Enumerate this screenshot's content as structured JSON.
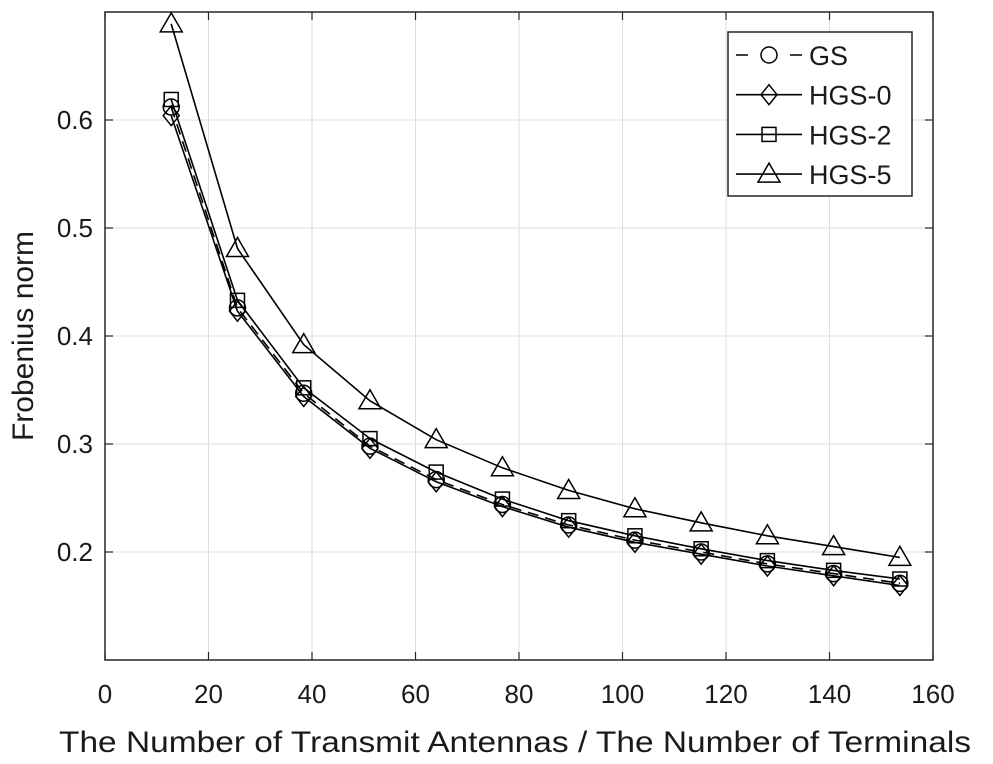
{
  "chart_data": {
    "type": "line",
    "xlabel": "The Number of Transmit Antennas / The Number of Terminals",
    "ylabel": "Frobenius norm",
    "xlim": [
      0,
      160
    ],
    "ylim": [
      0.1,
      0.7
    ],
    "xticks": [
      0,
      20,
      40,
      60,
      80,
      100,
      120,
      140,
      160
    ],
    "yticks": [
      0.2,
      0.3,
      0.4,
      0.5,
      0.6
    ],
    "grid": true,
    "legend_position": "top-right",
    "x": [
      12.8,
      25.6,
      38.4,
      51.2,
      64,
      76.8,
      89.6,
      102.4,
      115.2,
      128,
      140.8,
      153.6
    ],
    "series": [
      {
        "name": "GS",
        "marker": "circle",
        "line_style": "dashed",
        "color": "#000000",
        "values": [
          0.612,
          0.426,
          0.347,
          0.298,
          0.267,
          0.244,
          0.225,
          0.211,
          0.2,
          0.189,
          0.18,
          0.171
        ]
      },
      {
        "name": "HGS-0",
        "marker": "diamond",
        "line_style": "solid",
        "color": "#000000",
        "values": [
          0.604,
          0.423,
          0.344,
          0.296,
          0.265,
          0.242,
          0.223,
          0.209,
          0.198,
          0.187,
          0.178,
          0.169
        ]
      },
      {
        "name": "HGS-2",
        "marker": "square",
        "line_style": "solid",
        "color": "#000000",
        "values": [
          0.619,
          0.433,
          0.352,
          0.305,
          0.274,
          0.249,
          0.229,
          0.215,
          0.203,
          0.192,
          0.183,
          0.175
        ]
      },
      {
        "name": "HGS-5",
        "marker": "triangle",
        "line_style": "solid",
        "color": "#000000",
        "values": [
          0.689,
          0.481,
          0.392,
          0.34,
          0.304,
          0.278,
          0.257,
          0.24,
          0.227,
          0.215,
          0.205,
          0.195
        ]
      }
    ]
  }
}
